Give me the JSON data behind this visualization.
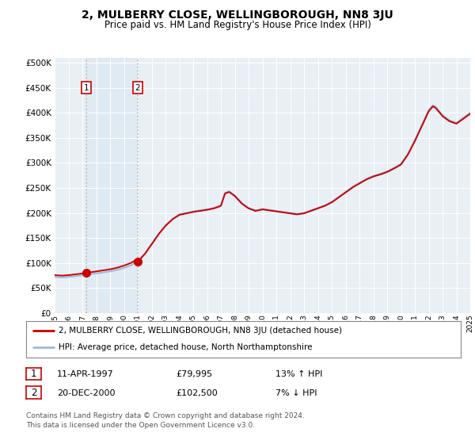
{
  "title": "2, MULBERRY CLOSE, WELLINGBOROUGH, NN8 3JU",
  "subtitle": "Price paid vs. HM Land Registry's House Price Index (HPI)",
  "x_start_year": 1995,
  "x_end_year": 2025,
  "y_ticks": [
    0,
    50000,
    100000,
    150000,
    200000,
    250000,
    300000,
    350000,
    400000,
    450000,
    500000
  ],
  "y_tick_labels": [
    "£0",
    "£50K",
    "£100K",
    "£150K",
    "£200K",
    "£250K",
    "£300K",
    "£350K",
    "£400K",
    "£450K",
    "£500K"
  ],
  "hpi_line_color": "#99bbdd",
  "price_line_color": "#cc0000",
  "vline_color": "#bbbbbb",
  "shade_color": "#ccdded",
  "sale1_year": 1997.28,
  "sale1_value": 79995,
  "sale1_label": "1",
  "sale2_year": 2001.0,
  "sale2_value": 102500,
  "sale2_label": "2",
  "legend_entry1": "2, MULBERRY CLOSE, WELLINGBOROUGH, NN8 3JU (detached house)",
  "legend_entry2": "HPI: Average price, detached house, North Northamptonshire",
  "table_row1": [
    "1",
    "11-APR-1997",
    "£79,995",
    "13% ↑ HPI"
  ],
  "table_row2": [
    "2",
    "20-DEC-2000",
    "£102,500",
    "7% ↓ HPI"
  ],
  "footer": "Contains HM Land Registry data © Crown copyright and database right 2024.\nThis data is licensed under the Open Government Licence v3.0.",
  "plot_bg_color": "#e8eff5"
}
